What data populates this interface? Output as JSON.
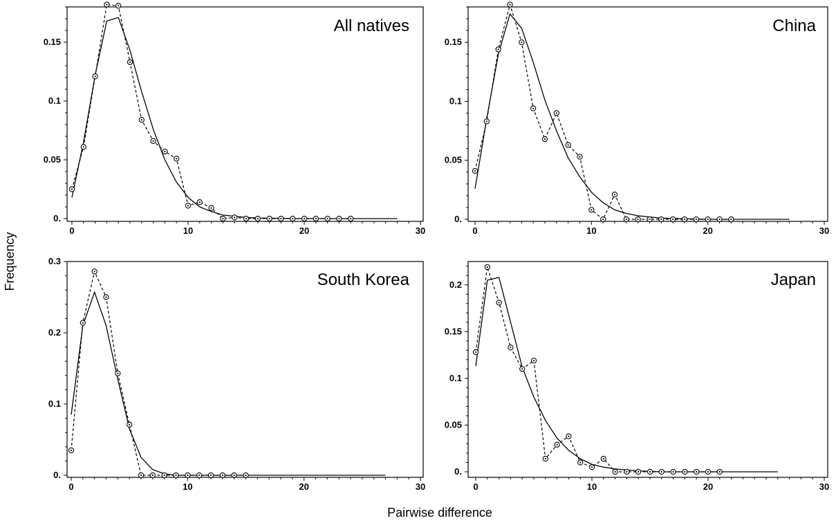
{
  "xlabel": "Pairwise difference",
  "ylabel": "Frequency",
  "chart_data": [
    {
      "type": "line",
      "title": "All natives",
      "xlim": [
        0,
        30
      ],
      "ylim": [
        0,
        0.18
      ],
      "xticks": [
        0,
        10,
        20,
        30
      ],
      "xtick_labels": [
        "0",
        "10",
        "20",
        "30"
      ],
      "yticks": [
        0,
        0.05,
        0.1,
        0.15
      ],
      "ytick_labels": [
        "0.",
        "0.05",
        "0.1",
        "0.15"
      ],
      "series": [
        {
          "style": "dashed-with-circles",
          "x": [
            0,
            1,
            2,
            3,
            4,
            5,
            6,
            7,
            8,
            9,
            10,
            11,
            12,
            13,
            14,
            15,
            16,
            17,
            18,
            19,
            20,
            21,
            22,
            23,
            24
          ],
          "y": [
            0.025,
            0.061,
            0.121,
            0.182,
            0.181,
            0.133,
            0.084,
            0.066,
            0.057,
            0.051,
            0.011,
            0.014,
            0.009,
            0.0,
            0.001,
            0.0,
            0.0,
            0.0,
            0.0,
            0.0,
            0.0,
            0.0,
            0.0,
            0.0,
            0.0
          ]
        },
        {
          "style": "solid",
          "x": [
            0,
            1,
            2,
            3,
            4,
            5,
            6,
            7,
            8,
            9,
            10,
            11,
            12,
            13,
            14,
            15,
            16,
            18,
            20,
            22,
            24,
            26,
            28
          ],
          "y": [
            0.018,
            0.065,
            0.122,
            0.168,
            0.171,
            0.143,
            0.108,
            0.076,
            0.05,
            0.031,
            0.018,
            0.01,
            0.006,
            0.003,
            0.002,
            0.001,
            0.0005,
            0.0002,
            0.0,
            0.0,
            0.0,
            0.0,
            0.0
          ]
        }
      ]
    },
    {
      "type": "line",
      "title": "China",
      "xlim": [
        0,
        30
      ],
      "ylim": [
        0,
        0.18
      ],
      "xticks": [
        0,
        10,
        20,
        30
      ],
      "xtick_labels": [
        "0",
        "10",
        "20",
        "30"
      ],
      "yticks": [
        0,
        0.05,
        0.1,
        0.15
      ],
      "ytick_labels": [
        "0.",
        "0.05",
        "0.1",
        "0.15"
      ],
      "series": [
        {
          "style": "dashed-with-circles",
          "x": [
            0,
            1,
            2,
            3,
            4,
            5,
            6,
            7,
            8,
            9,
            10,
            11,
            12,
            13,
            14,
            15,
            16,
            17,
            18,
            19,
            20,
            21,
            22
          ],
          "y": [
            0.041,
            0.083,
            0.144,
            0.182,
            0.15,
            0.094,
            0.068,
            0.09,
            0.063,
            0.053,
            0.008,
            0.0,
            0.021,
            0.0,
            0.0,
            0.0,
            0.0,
            0.0,
            0.0,
            0.0,
            0.0,
            0.0,
            0.0
          ]
        },
        {
          "style": "solid",
          "x": [
            0,
            1,
            2,
            3,
            4,
            5,
            6,
            7,
            8,
            9,
            10,
            11,
            12,
            13,
            14,
            15,
            16,
            18,
            20,
            22,
            24,
            27
          ],
          "y": [
            0.026,
            0.085,
            0.14,
            0.174,
            0.162,
            0.133,
            0.101,
            0.075,
            0.052,
            0.036,
            0.023,
            0.014,
            0.008,
            0.005,
            0.003,
            0.002,
            0.001,
            0.0005,
            0.0,
            0.0,
            0.0,
            0.0
          ]
        }
      ]
    },
    {
      "type": "line",
      "title": "South Korea",
      "xlim": [
        0,
        30
      ],
      "ylim": [
        0,
        0.3
      ],
      "xticks": [
        0,
        10,
        20,
        30
      ],
      "xtick_labels": [
        "0",
        "10",
        "20",
        "30"
      ],
      "yticks": [
        0,
        0.1,
        0.2,
        0.3
      ],
      "ytick_labels": [
        "0.",
        "0.1",
        "0.2",
        "0.3"
      ],
      "series": [
        {
          "style": "dashed-with-circles",
          "x": [
            0,
            1,
            2,
            3,
            4,
            5,
            6,
            7,
            8,
            9,
            10,
            11,
            12,
            13,
            14,
            15
          ],
          "y": [
            0.035,
            0.214,
            0.286,
            0.25,
            0.143,
            0.071,
            0.0,
            0.0,
            0.0,
            0.0,
            0.0,
            0.0,
            0.0,
            0.0,
            0.0,
            0.0
          ]
        },
        {
          "style": "solid",
          "x": [
            0,
            1,
            2,
            3,
            4,
            5,
            6,
            7,
            8,
            9,
            10,
            12,
            15,
            20,
            27
          ],
          "y": [
            0.085,
            0.21,
            0.257,
            0.21,
            0.135,
            0.065,
            0.025,
            0.008,
            0.002,
            0.0,
            0.0,
            0.0,
            0.0,
            0.0,
            0.0
          ]
        }
      ]
    },
    {
      "type": "line",
      "title": "Japan",
      "xlim": [
        0,
        30
      ],
      "ylim": [
        0,
        0.225
      ],
      "xticks": [
        0,
        10,
        20,
        30
      ],
      "xtick_labels": [
        "0",
        "10",
        "20",
        "30"
      ],
      "yticks": [
        0,
        0.05,
        0.1,
        0.15,
        0.2
      ],
      "ytick_labels": [
        "0.",
        "0.05",
        "0.1",
        "0.15",
        "0.2"
      ],
      "series": [
        {
          "style": "dashed-with-circles",
          "x": [
            0,
            1,
            2,
            3,
            4,
            5,
            6,
            7,
            8,
            9,
            10,
            11,
            12,
            13,
            14,
            15,
            16,
            17,
            18,
            19,
            20,
            21
          ],
          "y": [
            0.128,
            0.219,
            0.181,
            0.133,
            0.11,
            0.119,
            0.014,
            0.029,
            0.038,
            0.01,
            0.005,
            0.014,
            0.0,
            0.0,
            0.0,
            0.0,
            0.0,
            0.0,
            0.0,
            0.0,
            0.0,
            0.0
          ]
        },
        {
          "style": "solid",
          "x": [
            0,
            1,
            2,
            3,
            4,
            5,
            6,
            7,
            8,
            9,
            10,
            11,
            12,
            13,
            14,
            15,
            16,
            18,
            20,
            22,
            26
          ],
          "y": [
            0.113,
            0.205,
            0.208,
            0.16,
            0.112,
            0.08,
            0.055,
            0.036,
            0.023,
            0.014,
            0.008,
            0.005,
            0.003,
            0.002,
            0.001,
            0.0005,
            0.0,
            0.0,
            0.0,
            0.0,
            0.0
          ]
        }
      ]
    }
  ]
}
